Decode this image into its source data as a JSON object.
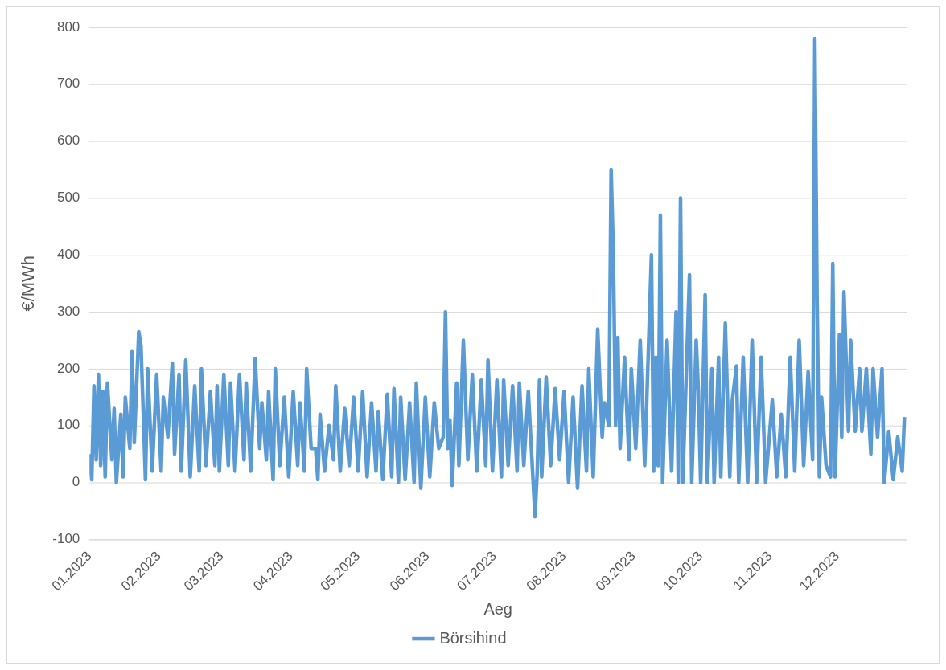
{
  "chart_data": {
    "type": "line",
    "xlabel": "Aeg",
    "ylabel": "€/MWh",
    "xlim": [
      "2023-01-01",
      "2024-01-01"
    ],
    "xticks": [
      {
        "value": "2023-01-01",
        "label": "01.2023"
      },
      {
        "value": "2023-02-01",
        "label": "02.2023"
      },
      {
        "value": "2023-03-01",
        "label": "03.2023"
      },
      {
        "value": "2023-04-01",
        "label": "04.2023"
      },
      {
        "value": "2023-05-01",
        "label": "05.2023"
      },
      {
        "value": "2023-06-01",
        "label": "06.2023"
      },
      {
        "value": "2023-07-01",
        "label": "07.2023"
      },
      {
        "value": "2023-08-01",
        "label": "08.2023"
      },
      {
        "value": "2023-09-01",
        "label": "09.2023"
      },
      {
        "value": "2023-10-01",
        "label": "10.2023"
      },
      {
        "value": "2023-11-01",
        "label": "11.2023"
      },
      {
        "value": "2023-12-01",
        "label": "12.2023"
      }
    ],
    "ylim": [
      -100,
      800
    ],
    "yticks": [
      -100,
      0,
      100,
      200,
      300,
      400,
      500,
      600,
      700,
      800
    ],
    "grid": "y",
    "legend": "bottom",
    "marker": "none",
    "line_style": "solid",
    "series": [
      {
        "name": "Börsihind",
        "color": "#5b9bd5",
        "x": [
          "2023-01-01",
          "2023-01-02",
          "2023-01-03",
          "2023-01-04",
          "2023-01-05",
          "2023-01-06",
          "2023-01-07",
          "2023-01-08",
          "2023-01-09",
          "2023-01-11",
          "2023-01-12",
          "2023-01-13",
          "2023-01-15",
          "2023-01-16",
          "2023-01-17",
          "2023-01-19",
          "2023-01-20",
          "2023-01-21",
          "2023-01-23",
          "2023-01-24",
          "2023-01-26",
          "2023-01-27",
          "2023-01-29",
          "2023-01-31",
          "2023-02-02",
          "2023-02-03",
          "2023-02-05",
          "2023-02-07",
          "2023-02-08",
          "2023-02-10",
          "2023-02-11",
          "2023-02-13",
          "2023-02-15",
          "2023-02-17",
          "2023-02-19",
          "2023-02-20",
          "2023-02-22",
          "2023-02-24",
          "2023-02-26",
          "2023-02-27",
          "2023-02-28",
          "2023-03-02",
          "2023-03-04",
          "2023-03-05",
          "2023-03-07",
          "2023-03-09",
          "2023-03-11",
          "2023-03-12",
          "2023-03-14",
          "2023-03-16",
          "2023-03-18",
          "2023-03-19",
          "2023-03-21",
          "2023-03-22",
          "2023-03-24",
          "2023-03-25",
          "2023-03-27",
          "2023-03-29",
          "2023-03-31",
          "2023-04-02",
          "2023-04-04",
          "2023-04-05",
          "2023-04-07",
          "2023-04-08",
          "2023-04-10",
          "2023-04-12",
          "2023-04-13",
          "2023-04-14",
          "2023-04-16",
          "2023-04-18",
          "2023-04-20",
          "2023-04-21",
          "2023-04-23",
          "2023-04-25",
          "2023-04-27",
          "2023-04-29",
          "2023-05-01",
          "2023-05-03",
          "2023-05-05",
          "2023-05-07",
          "2023-05-09",
          "2023-05-10",
          "2023-05-12",
          "2023-05-14",
          "2023-05-16",
          "2023-05-17",
          "2023-05-19",
          "2023-05-20",
          "2023-05-22",
          "2023-05-24",
          "2023-05-26",
          "2023-05-27",
          "2023-05-29",
          "2023-05-31",
          "2023-06-02",
          "2023-06-04",
          "2023-06-06",
          "2023-06-08",
          "2023-06-09",
          "2023-06-10",
          "2023-06-11",
          "2023-06-12",
          "2023-06-14",
          "2023-06-15",
          "2023-06-17",
          "2023-06-19",
          "2023-06-21",
          "2023-06-23",
          "2023-06-25",
          "2023-06-27",
          "2023-06-28",
          "2023-06-30",
          "2023-07-02",
          "2023-07-04",
          "2023-07-05",
          "2023-07-07",
          "2023-07-09",
          "2023-07-11",
          "2023-07-12",
          "2023-07-14",
          "2023-07-16",
          "2023-07-19",
          "2023-07-20",
          "2023-07-21",
          "2023-07-22",
          "2023-07-24",
          "2023-07-26",
          "2023-07-28",
          "2023-07-30",
          "2023-08-01",
          "2023-08-03",
          "2023-08-05",
          "2023-08-07",
          "2023-08-09",
          "2023-08-11",
          "2023-08-12",
          "2023-08-14",
          "2023-08-16",
          "2023-08-18",
          "2023-08-19",
          "2023-08-21",
          "2023-08-22",
          "2023-08-23",
          "2023-08-24",
          "2023-08-25",
          "2023-08-26",
          "2023-08-28",
          "2023-08-30",
          "2023-08-31",
          "2023-09-02",
          "2023-09-04",
          "2023-09-06",
          "2023-09-09",
          "2023-09-10",
          "2023-09-11",
          "2023-09-12",
          "2023-09-13",
          "2023-09-14",
          "2023-09-16",
          "2023-09-18",
          "2023-09-20",
          "2023-09-21",
          "2023-09-22",
          "2023-09-23",
          "2023-09-24",
          "2023-09-26",
          "2023-09-27",
          "2023-09-29",
          "2023-09-30",
          "2023-10-01",
          "2023-10-03",
          "2023-10-04",
          "2023-10-06",
          "2023-10-07",
          "2023-10-09",
          "2023-10-10",
          "2023-10-12",
          "2023-10-14",
          "2023-10-15",
          "2023-10-17",
          "2023-10-18",
          "2023-10-20",
          "2023-10-22",
          "2023-10-24",
          "2023-10-26",
          "2023-10-28",
          "2023-10-30",
          "2023-11-02",
          "2023-11-04",
          "2023-11-06",
          "2023-11-08",
          "2023-11-10",
          "2023-11-12",
          "2023-11-14",
          "2023-11-16",
          "2023-11-18",
          "2023-11-20",
          "2023-11-21",
          "2023-11-22",
          "2023-11-23",
          "2023-11-24",
          "2023-11-26",
          "2023-11-28",
          "2023-11-29",
          "2023-11-30",
          "2023-12-02",
          "2023-12-03",
          "2023-12-04",
          "2023-12-06",
          "2023-12-07",
          "2023-12-09",
          "2023-12-11",
          "2023-12-12",
          "2023-12-14",
          "2023-12-16",
          "2023-12-17",
          "2023-12-19",
          "2023-12-21",
          "2023-12-22",
          "2023-12-24",
          "2023-12-26",
          "2023-12-28",
          "2023-12-30",
          "2023-12-31"
        ],
        "values": [
          50,
          5,
          170,
          40,
          190,
          30,
          160,
          10,
          175,
          40,
          130,
          0,
          120,
          10,
          150,
          60,
          230,
          70,
          265,
          240,
          5,
          200,
          20,
          190,
          20,
          150,
          80,
          210,
          50,
          190,
          20,
          215,
          10,
          170,
          20,
          200,
          30,
          160,
          30,
          170,
          20,
          190,
          30,
          175,
          20,
          190,
          40,
          175,
          20,
          218,
          60,
          140,
          40,
          160,
          5,
          200,
          30,
          150,
          10,
          160,
          30,
          140,
          20,
          200,
          60,
          60,
          5,
          120,
          20,
          100,
          40,
          170,
          20,
          130,
          30,
          150,
          20,
          160,
          10,
          140,
          20,
          125,
          5,
          155,
          10,
          165,
          0,
          150,
          5,
          140,
          0,
          175,
          -10,
          150,
          10,
          140,
          60,
          80,
          300,
          60,
          110,
          -5,
          175,
          30,
          250,
          40,
          190,
          20,
          180,
          30,
          215,
          20,
          180,
          10,
          180,
          30,
          170,
          20,
          175,
          30,
          160,
          -60,
          20,
          180,
          10,
          185,
          30,
          165,
          40,
          160,
          0,
          150,
          -10,
          170,
          20,
          200,
          10,
          270,
          80,
          140,
          100,
          550,
          400,
          100,
          255,
          60,
          220,
          40,
          200,
          60,
          250,
          30,
          400,
          20,
          220,
          30,
          470,
          0,
          250,
          20,
          300,
          0,
          500,
          0,
          120,
          365,
          0,
          250,
          160,
          0,
          330,
          0,
          200,
          0,
          220,
          10,
          280,
          10,
          140,
          205,
          0,
          220,
          0,
          250,
          0,
          220,
          0,
          145,
          10,
          120,
          10,
          220,
          20,
          250,
          30,
          195,
          40,
          780,
          325,
          10,
          150,
          30,
          10,
          385,
          10,
          260,
          80,
          335,
          90,
          250,
          90,
          200,
          90,
          200,
          50,
          200,
          80,
          200,
          0,
          90,
          5,
          80,
          20,
          115
        ]
      }
    ]
  }
}
